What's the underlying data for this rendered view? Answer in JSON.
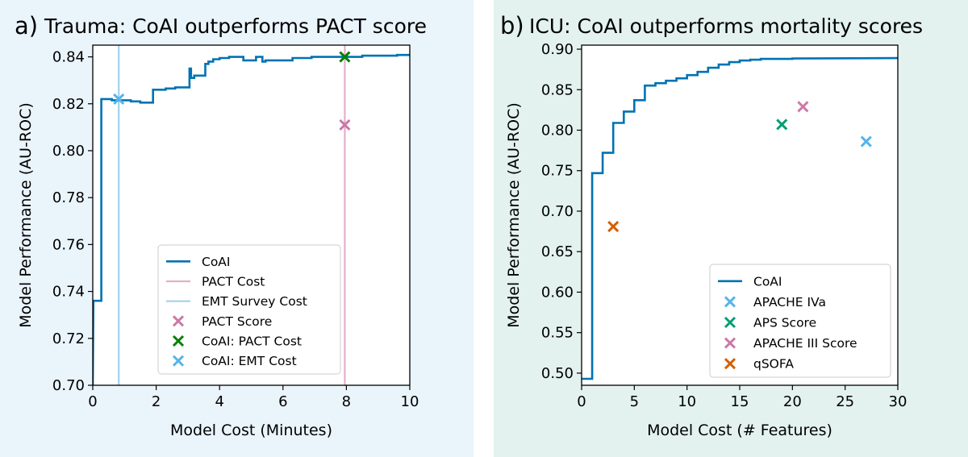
{
  "chart_data": [
    {
      "type": "line",
      "panel_letter": "a)",
      "title": "Trauma: CoAI outperforms PACT score",
      "xlabel": "Model Cost (Minutes)",
      "ylabel": "Model Performance (AU-ROC)",
      "xlim": [
        0,
        10
      ],
      "ylim": [
        0.7,
        0.845
      ],
      "xticks": [
        0,
        2,
        4,
        6,
        8,
        10
      ],
      "xtick_labels": [
        "0",
        "2",
        "4",
        "6",
        "8",
        "10"
      ],
      "yticks": [
        0.7,
        0.72,
        0.74,
        0.76,
        0.78,
        0.8,
        0.82,
        0.84
      ],
      "ytick_labels": [
        "0.70",
        "0.72",
        "0.74",
        "0.76",
        "0.78",
        "0.80",
        "0.82",
        "0.84"
      ],
      "grid": false,
      "legend_location": "lower-right",
      "series": [
        {
          "name": "CoAI",
          "kind": "step",
          "color": "#0072b2",
          "points": [
            [
              0,
              0.7
            ],
            [
              0.02,
              0.736
            ],
            [
              0.27,
              0.736
            ],
            [
              0.27,
              0.822
            ],
            [
              0.6,
              0.822
            ],
            [
              0.6,
              0.8215
            ],
            [
              1.2,
              0.8215
            ],
            [
              1.2,
              0.821
            ],
            [
              1.5,
              0.821
            ],
            [
              1.5,
              0.8205
            ],
            [
              1.9,
              0.8205
            ],
            [
              1.9,
              0.826
            ],
            [
              2.3,
              0.826
            ],
            [
              2.3,
              0.8265
            ],
            [
              2.6,
              0.8265
            ],
            [
              2.6,
              0.827
            ],
            [
              3.05,
              0.827
            ],
            [
              3.05,
              0.835
            ],
            [
              3.1,
              0.835
            ],
            [
              3.1,
              0.831
            ],
            [
              3.2,
              0.831
            ],
            [
              3.2,
              0.832
            ],
            [
              3.55,
              0.832
            ],
            [
              3.55,
              0.837
            ],
            [
              3.65,
              0.837
            ],
            [
              3.65,
              0.838
            ],
            [
              3.8,
              0.838
            ],
            [
              3.8,
              0.839
            ],
            [
              4.0,
              0.839
            ],
            [
              4.0,
              0.8395
            ],
            [
              4.3,
              0.8395
            ],
            [
              4.3,
              0.84
            ],
            [
              4.75,
              0.84
            ],
            [
              4.75,
              0.8385
            ],
            [
              5.15,
              0.8385
            ],
            [
              5.15,
              0.84
            ],
            [
              5.35,
              0.84
            ],
            [
              5.35,
              0.838
            ],
            [
              5.45,
              0.838
            ],
            [
              5.45,
              0.8385
            ],
            [
              6.3,
              0.8385
            ],
            [
              6.3,
              0.8395
            ],
            [
              6.9,
              0.8395
            ],
            [
              6.9,
              0.84
            ],
            [
              8.5,
              0.84
            ],
            [
              8.5,
              0.8405
            ],
            [
              9.6,
              0.8405
            ],
            [
              9.6,
              0.8408
            ],
            [
              10,
              0.8408
            ]
          ]
        },
        {
          "name": "PACT Cost",
          "kind": "vline",
          "x": 7.95,
          "color": "#e6aec9"
        },
        {
          "name": "EMT Survey Cost",
          "kind": "vline",
          "x": 0.82,
          "color": "#9fd3ec"
        },
        {
          "name": "PACT Score",
          "kind": "marker",
          "x": 7.95,
          "y": 0.811,
          "color": "#cc79a7"
        },
        {
          "name": "CoAI: PACT Cost",
          "kind": "marker",
          "x": 7.95,
          "y": 0.84,
          "color": "#008000"
        },
        {
          "name": "CoAI: EMT Cost",
          "kind": "marker",
          "x": 0.82,
          "y": 0.822,
          "color": "#56b4e9"
        }
      ]
    },
    {
      "type": "line",
      "panel_letter": "b)",
      "title": "ICU: CoAI outperforms mortality scores",
      "xlabel": "Model Cost (# Features)",
      "ylabel": "Model Performance (AU-ROC)",
      "xlim": [
        0,
        30
      ],
      "ylim": [
        0.485,
        0.905
      ],
      "xticks": [
        0,
        5,
        10,
        15,
        20,
        25,
        30
      ],
      "xtick_labels": [
        "0",
        "5",
        "10",
        "15",
        "20",
        "25",
        "30"
      ],
      "yticks": [
        0.5,
        0.55,
        0.6,
        0.65,
        0.7,
        0.75,
        0.8,
        0.85,
        0.9
      ],
      "ytick_labels": [
        "0.50",
        "0.55",
        "0.60",
        "0.65",
        "0.70",
        "0.75",
        "0.80",
        "0.85",
        "0.90"
      ],
      "grid": false,
      "legend_location": "lower-right",
      "series": [
        {
          "name": "CoAI",
          "kind": "step",
          "color": "#0072b2",
          "points": [
            [
              0,
              0.493
            ],
            [
              1,
              0.493
            ],
            [
              1,
              0.747
            ],
            [
              2,
              0.747
            ],
            [
              2,
              0.772
            ],
            [
              3,
              0.772
            ],
            [
              3,
              0.809
            ],
            [
              4,
              0.809
            ],
            [
              4,
              0.823
            ],
            [
              5,
              0.823
            ],
            [
              5,
              0.837
            ],
            [
              6,
              0.837
            ],
            [
              6,
              0.855
            ],
            [
              7,
              0.855
            ],
            [
              7,
              0.858
            ],
            [
              8,
              0.858
            ],
            [
              8,
              0.861
            ],
            [
              9,
              0.861
            ],
            [
              9,
              0.864
            ],
            [
              10,
              0.864
            ],
            [
              10,
              0.868
            ],
            [
              11,
              0.868
            ],
            [
              11,
              0.872
            ],
            [
              12,
              0.872
            ],
            [
              12,
              0.877
            ],
            [
              13,
              0.877
            ],
            [
              13,
              0.881
            ],
            [
              14,
              0.881
            ],
            [
              14,
              0.884
            ],
            [
              15,
              0.884
            ],
            [
              15,
              0.886
            ],
            [
              16,
              0.886
            ],
            [
              16,
              0.887
            ],
            [
              17,
              0.887
            ],
            [
              17,
              0.888
            ],
            [
              20,
              0.888
            ],
            [
              20,
              0.8885
            ],
            [
              30,
              0.889
            ]
          ]
        },
        {
          "name": "APACHE IVa",
          "kind": "marker",
          "x": 27,
          "y": 0.786,
          "color": "#56b4e9"
        },
        {
          "name": "APS Score",
          "kind": "marker",
          "x": 19,
          "y": 0.807,
          "color": "#009e73"
        },
        {
          "name": "APACHE III Score",
          "kind": "marker",
          "x": 21,
          "y": 0.829,
          "color": "#cc79a7"
        },
        {
          "name": "qSOFA",
          "kind": "marker",
          "x": 3,
          "y": 0.681,
          "color": "#d55e00"
        }
      ]
    }
  ]
}
